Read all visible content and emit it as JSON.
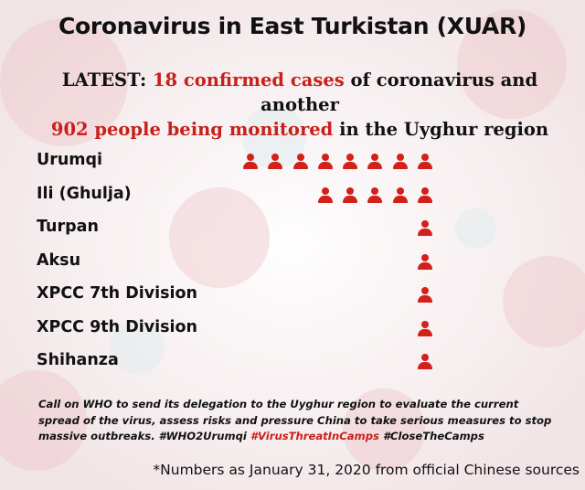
{
  "title": "Coronavirus in East Turkistan (XUAR)",
  "latest": {
    "prefix": "LATEST:",
    "cases": "18 confirmed cases",
    "middle": "of coronavirus and another",
    "monitored": "902 people being monitored",
    "suffix": "in the Uyghur region"
  },
  "chart_data": {
    "type": "pictograph",
    "categories": [
      "Urumqi",
      "Ili (Ghulja)",
      "Turpan",
      "Aksu",
      "XPCC 7th Division",
      "XPCC 9th Division",
      "Shihanza"
    ],
    "values": [
      8,
      5,
      1,
      1,
      1,
      1,
      1
    ]
  },
  "call_to_action": {
    "text": "Call on WHO to send its delegation to the Uyghur region to evaluate the current spread of the virus, assess risks and pressure China to take serious measures to stop massive outbreaks. #WHO2Urumqi",
    "tag1": "#VirusThreatInCamps",
    "tag2": "#CloseTheCamps"
  },
  "source_note": "*Numbers as January 31, 2020 from official Chinese sources",
  "colors": {
    "accent": "#c8201a",
    "icon": "#d2201a",
    "text": "#111111"
  }
}
